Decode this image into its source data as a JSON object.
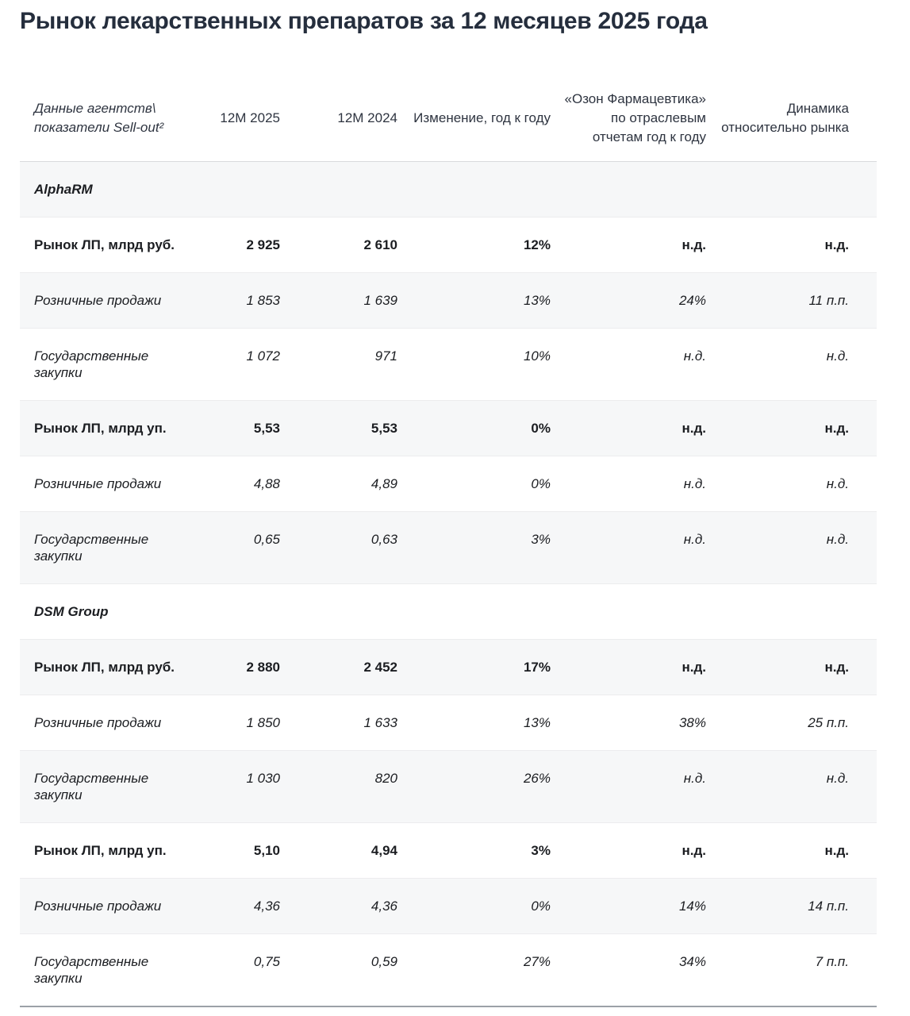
{
  "page_title": "Рынок лекарственных препаратов за 12 месяцев 2025 года",
  "chart_data": {
    "type": "table",
    "title": "Рынок лекарственных препаратов за 12 месяцев 2025 года",
    "columns": [
      {
        "id": "agency-metrics",
        "lines": [
          "Данные агентств\\",
          "показатели Sell-out²"
        ]
      },
      {
        "id": "12m-2025",
        "label": "12M 2025"
      },
      {
        "id": "12m-2024",
        "label": "12M 2024"
      },
      {
        "id": "change-yoy",
        "label": "Изменение, год к году"
      },
      {
        "id": "ozon-pharma-reports",
        "lines": [
          "«Озон Фармацевтика»",
          "по отраслевым",
          "отчетам год к году"
        ]
      },
      {
        "id": "dynamics-vs-market",
        "lines": [
          "Динамика",
          "относительно рынка"
        ]
      }
    ],
    "rows": [
      {
        "type": "section",
        "label": "AlphaRM"
      },
      {
        "type": "main",
        "label": "Рынок ЛП, млрд руб.",
        "values": [
          "2 925",
          "2 610",
          "12%",
          "н.д.",
          "н.д."
        ]
      },
      {
        "type": "sub",
        "label": "Розничные продажи",
        "values": [
          "1 853",
          "1 639",
          "13%",
          "24%",
          "11 п.п."
        ]
      },
      {
        "type": "sub",
        "label": "Государственные закупки",
        "values": [
          "1 072",
          "971",
          "10%",
          "н.д.",
          "н.д."
        ]
      },
      {
        "type": "main",
        "label": "Рынок ЛП, млрд уп.",
        "values": [
          "5,53",
          "5,53",
          "0%",
          "н.д.",
          "н.д."
        ]
      },
      {
        "type": "sub",
        "label": "Розничные продажи",
        "values": [
          "4,88",
          "4,89",
          "0%",
          "н.д.",
          "н.д."
        ]
      },
      {
        "type": "sub",
        "label": "Государственные закупки",
        "values": [
          "0,65",
          "0,63",
          "3%",
          "н.д.",
          "н.д."
        ]
      },
      {
        "type": "section",
        "label": "DSM Group"
      },
      {
        "type": "main",
        "label": "Рынок ЛП, млрд руб.",
        "values": [
          "2 880",
          "2 452",
          "17%",
          "н.д.",
          "н.д."
        ]
      },
      {
        "type": "sub",
        "label": "Розничные продажи",
        "values": [
          "1 850",
          "1 633",
          "13%",
          "38%",
          "25 п.п."
        ]
      },
      {
        "type": "sub",
        "label": "Государственные закупки",
        "values": [
          "1 030",
          "820",
          "26%",
          "н.д.",
          "н.д."
        ]
      },
      {
        "type": "main",
        "label": "Рынок ЛП, млрд уп.",
        "values": [
          "5,10",
          "4,94",
          "3%",
          "н.д.",
          "н.д."
        ]
      },
      {
        "type": "sub",
        "label": "Розничные продажи",
        "values": [
          "4,36",
          "4,36",
          "0%",
          "14%",
          "14 п.п."
        ]
      },
      {
        "type": "sub",
        "label": "Государственные закупки",
        "values": [
          "0,75",
          "0,59",
          "27%",
          "34%",
          "7 п.п."
        ]
      }
    ]
  },
  "colors": {
    "title_text": "#252e3d",
    "body_text": "#1b1d21",
    "header_text": "#2e3440",
    "row_alt_background": "#f6f7f8",
    "row_divider": "#ececee",
    "header_divider": "#d9dadd",
    "bottom_border": "#9ca1a8",
    "page_background": "#ffffff"
  }
}
